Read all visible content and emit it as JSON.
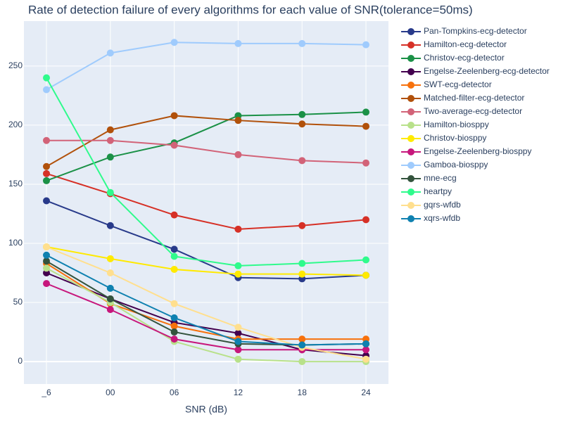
{
  "chart_data": {
    "type": "line",
    "title": "Rate of detection failure of every algorithms for each value of SNR(tolerance=50ms)",
    "xlabel": "SNR (dB)",
    "ylabel": "",
    "categories": [
      "_6",
      "00",
      "06",
      "12",
      "18",
      "24"
    ],
    "ylim": [
      -19,
      288
    ],
    "yticks": [
      0,
      50,
      100,
      150,
      200,
      250
    ],
    "grid": true,
    "legend_position": "right",
    "plot_background": "#e5ecf6",
    "series": [
      {
        "name": "Pan-Tompkins-ecg-detector",
        "color": "#283a8a",
        "values": [
          136,
          115,
          95,
          71,
          70,
          73
        ]
      },
      {
        "name": "Hamilton-ecg-detector",
        "color": "#d63026",
        "values": [
          159,
          142,
          124,
          112,
          115,
          120
        ]
      },
      {
        "name": "Christov-ecg-detector",
        "color": "#1b9147",
        "values": [
          153,
          173,
          185,
          208,
          209,
          211
        ]
      },
      {
        "name": "Engelse-Zeelenberg-ecg-detector",
        "color": "#43004e",
        "values": [
          75,
          53,
          33,
          24,
          10,
          5
        ]
      },
      {
        "name": "SWT-ecg-detector",
        "color": "#f7710c",
        "values": [
          83,
          49,
          30,
          19,
          19,
          19
        ]
      },
      {
        "name": "Matched-filter-ecg-detector",
        "color": "#b1510b",
        "values": [
          165,
          196,
          208,
          204,
          201,
          199
        ]
      },
      {
        "name": "Two-average-ecg-detector",
        "color": "#d26378",
        "values": [
          187,
          187,
          183,
          175,
          170,
          168
        ]
      },
      {
        "name": "Hamilton-biosppy",
        "color": "#b8e18a",
        "values": [
          79,
          50,
          17,
          2,
          0,
          0
        ]
      },
      {
        "name": "Christov-biosppy",
        "color": "#ffea00",
        "values": [
          97,
          87,
          78,
          74,
          74,
          73
        ]
      },
      {
        "name": "Engelse-Zeelenberg-biosppy",
        "color": "#c7177c",
        "values": [
          66,
          44,
          19,
          10,
          10,
          10
        ]
      },
      {
        "name": "Gamboa-biosppy",
        "color": "#9fcbfd",
        "values": [
          230,
          261,
          270,
          269,
          269,
          268
        ]
      },
      {
        "name": "mne-ecg",
        "color": "#33533d",
        "values": [
          85,
          53,
          25,
          15,
          14,
          15
        ]
      },
      {
        "name": "heartpy",
        "color": "#2ffb8c",
        "values": [
          240,
          143,
          89,
          81,
          83,
          86
        ]
      },
      {
        "name": "gqrs-wfdb",
        "color": "#ffdf8e",
        "values": [
          97,
          75,
          49,
          29,
          12,
          2
        ]
      },
      {
        "name": "xqrs-wfdb",
        "color": "#0f81b0",
        "values": [
          90,
          62,
          37,
          17,
          14,
          15
        ]
      }
    ]
  }
}
